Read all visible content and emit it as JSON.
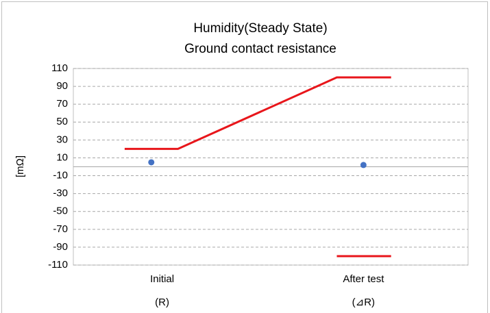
{
  "chart_data": {
    "type": "scatter",
    "title": "Humidity(Steady State)",
    "subtitle": "Ground contact resistance",
    "y_label": "[mΩ]",
    "xlim": [
      0,
      4
    ],
    "xticks": [
      {
        "value": 0.9,
        "label": "Initial"
      },
      {
        "value": 2.94,
        "label": "After test"
      }
    ],
    "x_sublabels": [
      "(R)",
      "(⊿R)"
    ],
    "ylim": [
      -110,
      110
    ],
    "yticks": [
      -110,
      -90,
      -70,
      -50,
      -30,
      -10,
      10,
      30,
      50,
      70,
      90,
      110
    ],
    "grid": true,
    "series": [
      {
        "color": "#e8161b",
        "mode": "line",
        "x": [
          0.52,
          1.06,
          2.67,
          3.22
        ],
        "values": [
          20,
          20,
          100,
          100
        ]
      },
      {
        "color": "#e8161b",
        "mode": "line",
        "x": [
          2.67,
          3.22
        ],
        "values": [
          -100,
          -100
        ]
      },
      {
        "color": "#4472c4",
        "mode": "marker",
        "x": [
          0.79,
          2.94
        ],
        "values": [
          5,
          2
        ]
      }
    ]
  }
}
